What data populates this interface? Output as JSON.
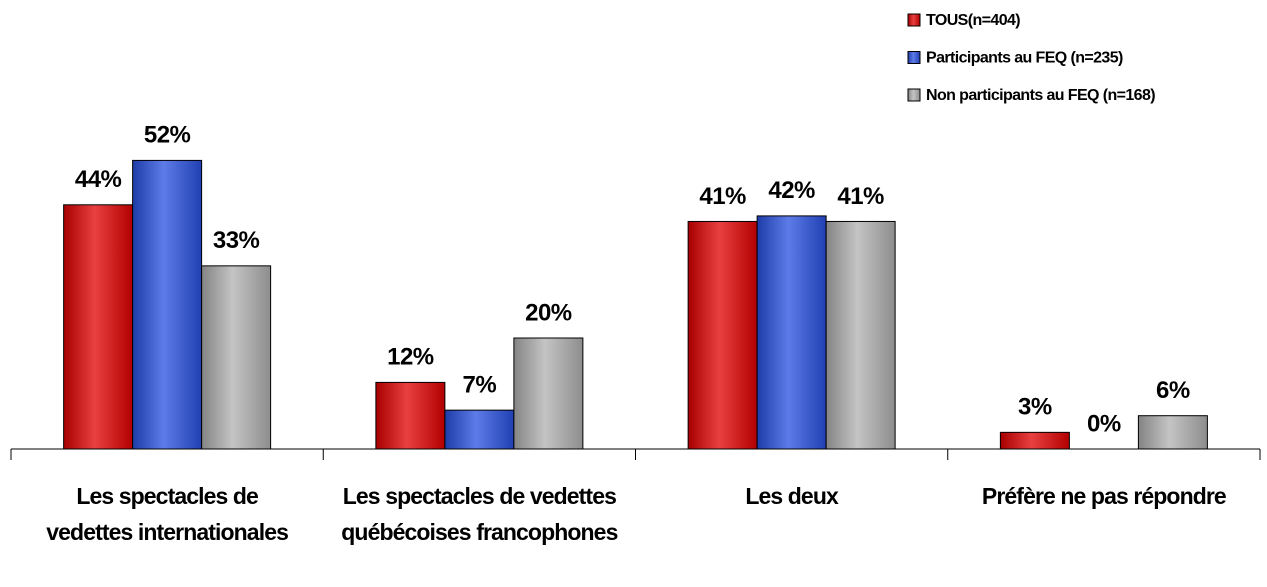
{
  "chart_data": {
    "type": "bar",
    "categories": [
      "Les spectacles de vedettes internationales",
      "Les spectacles de vedettes québécoises francophones",
      "Les deux",
      "Préfère ne pas répondre"
    ],
    "series": [
      {
        "name": "TOUS(n=404)",
        "color": "#e00000",
        "values": [
          44,
          12,
          41,
          3
        ],
        "value_labels": [
          "44%",
          "12%",
          "41%",
          "3%"
        ]
      },
      {
        "name": "Participants au FEQ (n=235)",
        "color": "#2850e0",
        "values": [
          52,
          7,
          42,
          0
        ],
        "value_labels": [
          "52%",
          "7%",
          "42%",
          "0%"
        ]
      },
      {
        "name": "Non participants au FEQ (n=168)",
        "color": "#b0b0b0",
        "values": [
          33,
          20,
          41,
          6
        ],
        "value_labels": [
          "33%",
          "20%",
          "41%",
          "6%"
        ]
      }
    ],
    "ylim": [
      0,
      60
    ],
    "legend": "top-right"
  }
}
